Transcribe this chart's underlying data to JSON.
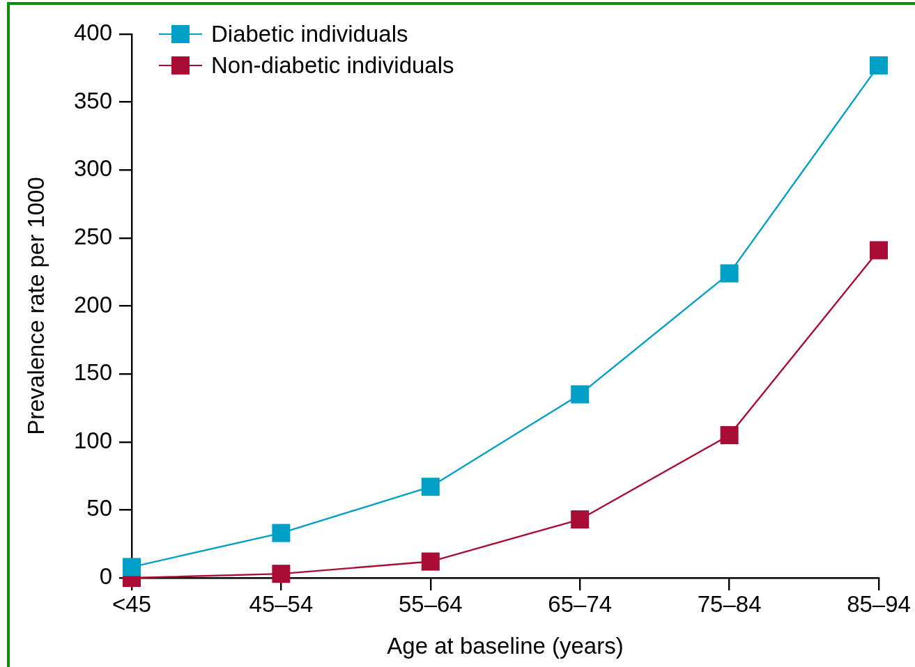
{
  "chart_data": {
    "type": "line",
    "xlabel": "Age at baseline (years)",
    "ylabel": "Prevalence rate per 1000",
    "categories": [
      "<45",
      "45–54",
      "55–64",
      "65–74",
      "75–84",
      "85–94"
    ],
    "series": [
      {
        "name": "Diabetic individuals",
        "color": "#00a0c6",
        "values": [
          8,
          33,
          67,
          135,
          224,
          377
        ]
      },
      {
        "name": "Non-diabetic individuals",
        "color": "#a90c35",
        "values": [
          0,
          3,
          12,
          43,
          105,
          241
        ]
      }
    ],
    "ylim": [
      0,
      400
    ],
    "yticks": [
      0,
      50,
      100,
      150,
      200,
      250,
      300,
      350,
      400
    ],
    "legend": "top left",
    "marker": "square",
    "line_style": "solid"
  }
}
